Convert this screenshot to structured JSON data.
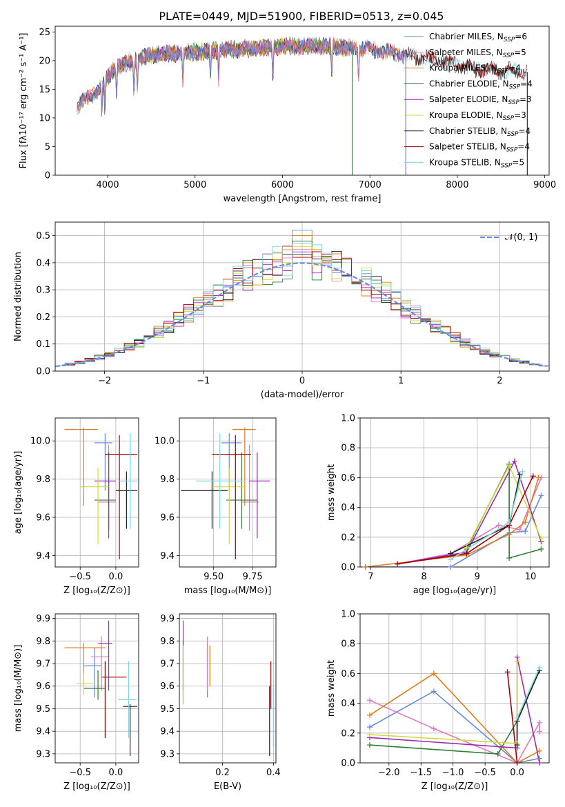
{
  "figure": {
    "title": "PLATE=0449, MJD=51900, FIBERID=0513, z=0.045"
  },
  "chart_data": [
    {
      "id": "spectrum",
      "type": "line",
      "xlabel": "wavelength [Angstrom, rest frame]",
      "ylabel": "Flux [fλ10⁻¹⁷ erg cm⁻² s⁻¹ A⁻¹]",
      "xlim": [
        3400,
        9050
      ],
      "ylim": [
        0,
        26
      ],
      "xticks": [
        4000,
        5000,
        6000,
        7000,
        8000,
        9000
      ],
      "yticks": [
        0,
        5,
        10,
        15,
        20,
        25
      ],
      "grid": false,
      "legend_position": "top-right",
      "series": [
        {
          "name": "Chabrier MILES, N_SSP=6",
          "label": "Chabrier MILES, N",
          "sub": "SSP",
          "suffix": "=6",
          "color": "#6688dd",
          "range": [
            3650,
            7410
          ]
        },
        {
          "name": "Salpeter MILES, N_SSP=5",
          "label": "Salpeter MILES, N",
          "sub": "SSP",
          "suffix": "=5",
          "color": "#e377c2",
          "range": [
            3650,
            7410
          ]
        },
        {
          "name": "Kroupa MILES, N_SSP=4",
          "label": "Kroupa MILES, N",
          "sub": "SSP",
          "suffix": "=4",
          "color": "#e07b1a",
          "range": [
            3650,
            7410
          ]
        },
        {
          "name": "Chabrier ELODIE, N_SSP=4",
          "label": "Chabrier ELODIE, N",
          "sub": "SSP",
          "suffix": "=4",
          "color": "#2e7d32",
          "range": [
            3900,
            6800
          ]
        },
        {
          "name": "Salpeter ELODIE, N_SSP=3",
          "label": "Salpeter ELODIE, N",
          "sub": "SSP",
          "suffix": "=3",
          "color": "#9c27b0",
          "range": [
            3900,
            6800
          ]
        },
        {
          "name": "Kroupa ELODIE, N_SSP=3",
          "label": "Kroupa ELODIE, N",
          "sub": "SSP",
          "suffix": "=3",
          "color": "#cddc39",
          "range": [
            3900,
            6800
          ]
        },
        {
          "name": "Chabrier STELIB, N_SSP=4",
          "label": "Chabrier STELIB, N",
          "sub": "SSP",
          "suffix": "=4",
          "color": "#222222",
          "range": [
            3650,
            8800
          ]
        },
        {
          "name": "Salpeter STELIB, N_SSP=4",
          "label": "Salpeter STELIB, N",
          "sub": "SSP",
          "suffix": "=4",
          "color": "#a00000",
          "range": [
            3650,
            8800
          ]
        },
        {
          "name": "Kroupa STELIB, N_SSP=5",
          "label": "Kroupa STELIB, N",
          "sub": "SSP",
          "suffix": "=5",
          "color": "#7fd6e0",
          "range": [
            3650,
            8800
          ]
        }
      ],
      "continuum": [
        [
          3650,
          12
        ],
        [
          3900,
          15
        ],
        [
          4100,
          19
        ],
        [
          4500,
          21
        ],
        [
          5000,
          21.5
        ],
        [
          5500,
          22
        ],
        [
          6000,
          22.5
        ],
        [
          6500,
          22.5
        ],
        [
          7000,
          22
        ],
        [
          7400,
          21
        ],
        [
          7800,
          20
        ],
        [
          8200,
          18.5
        ],
        [
          8800,
          18
        ]
      ]
    },
    {
      "id": "residuals",
      "type": "histogram",
      "xlabel": "(data-model)/error",
      "ylabel": "Normed distribution",
      "xlim": [
        -2.5,
        2.5
      ],
      "ylim": [
        0,
        0.55
      ],
      "xticks": [
        -2,
        -1,
        0,
        1,
        2
      ],
      "yticks": [
        0.0,
        0.1,
        0.2,
        0.3,
        0.4,
        0.5
      ],
      "grid": true,
      "legend_position": "top-right",
      "reference_curve": {
        "name": "𝒩(0, 1)",
        "mean": 0,
        "sigma": 1,
        "color": "#6a8ed8"
      },
      "bin_width": 0.1,
      "peak_values": [
        0.52,
        0.45,
        0.5,
        0.48,
        0.44,
        0.46,
        0.43,
        0.42,
        0.47
      ]
    },
    {
      "id": "age-vs-Z",
      "type": "scatter",
      "xlabel": "Z [log₁₀(Z/Z⊙)]",
      "ylabel": "age  [log₁₀(age/yr)]",
      "xlim": [
        -0.85,
        0.32
      ],
      "ylim": [
        9.34,
        10.12
      ],
      "xticks": [
        -0.5,
        0.0
      ],
      "yticks": [
        9.4,
        9.6,
        9.8,
        10.0
      ],
      "grid": true,
      "points": [
        {
          "x": -0.15,
          "y": 9.99,
          "xerr": [
            0.15,
            0.1
          ],
          "yerr": [
            0.25,
            0.05
          ],
          "color": "#6688dd"
        },
        {
          "x": -0.1,
          "y": 9.68,
          "xerr": [
            0.15,
            0.1
          ],
          "yerr": [
            0.15,
            0.3
          ],
          "color": "#e377c2"
        },
        {
          "x": -0.45,
          "y": 10.06,
          "xerr": [
            0.27,
            0.2
          ],
          "yerr": [
            0.4,
            0.01
          ],
          "color": "#e07b1a"
        },
        {
          "x": -0.1,
          "y": 9.69,
          "xerr": [
            0.2,
            0.1
          ],
          "yerr": [
            0.15,
            0.25
          ],
          "color": "#2e7d32"
        },
        {
          "x": -0.1,
          "y": 9.79,
          "xerr": [
            0.2,
            0.1
          ],
          "yerr": [
            0.3,
            0.15
          ],
          "color": "#9c27b0"
        },
        {
          "x": -0.25,
          "y": 9.76,
          "xerr": [
            0.25,
            0.15
          ],
          "yerr": [
            0.3,
            0.1
          ],
          "color": "#cddc39"
        },
        {
          "x": 0.15,
          "y": 9.74,
          "xerr": [
            0.15,
            0.15
          ],
          "yerr": [
            0.2,
            0.1
          ],
          "color": "#222222"
        },
        {
          "x": 0.05,
          "y": 9.93,
          "xerr": [
            0.2,
            0.25
          ],
          "yerr": [
            0.55,
            0.1
          ],
          "color": "#a00000"
        },
        {
          "x": 0.2,
          "y": 9.79,
          "xerr": [
            0.15,
            0.1
          ],
          "yerr": [
            0.25,
            0.25
          ],
          "color": "#7fd6e0"
        }
      ]
    },
    {
      "id": "age-vs-mass",
      "type": "scatter",
      "xlabel": "mass [log₁₀(M/M⊙)]",
      "ylabel": "",
      "xlim": [
        9.28,
        9.9
      ],
      "ylim": [
        9.34,
        10.12
      ],
      "xticks": [
        9.5,
        9.75
      ],
      "yticks": [
        9.4,
        9.6,
        9.8,
        10.0
      ],
      "grid": true,
      "points": [
        {
          "x": 9.6,
          "y": 9.99,
          "xerr": [
            0.05,
            0.08
          ],
          "yerr": [
            0.25,
            0.05
          ],
          "color": "#6688dd"
        },
        {
          "x": 9.73,
          "y": 9.68,
          "xerr": [
            0.05,
            0.06
          ],
          "yerr": [
            0.15,
            0.3
          ],
          "color": "#e377c2"
        },
        {
          "x": 9.7,
          "y": 10.06,
          "xerr": [
            0.08,
            0.07
          ],
          "yerr": [
            0.4,
            0.01
          ],
          "color": "#e07b1a"
        },
        {
          "x": 9.68,
          "y": 9.69,
          "xerr": [
            0.1,
            0.1
          ],
          "yerr": [
            0.15,
            0.25
          ],
          "color": "#2e7d32"
        },
        {
          "x": 9.78,
          "y": 9.79,
          "xerr": [
            0.05,
            0.08
          ],
          "yerr": [
            0.3,
            0.15
          ],
          "color": "#9c27b0"
        },
        {
          "x": 9.6,
          "y": 9.76,
          "xerr": [
            0.1,
            0.1
          ],
          "yerr": [
            0.3,
            0.1
          ],
          "color": "#cddc39"
        },
        {
          "x": 9.49,
          "y": 9.74,
          "xerr": [
            0.2,
            0.1
          ],
          "yerr": [
            0.2,
            0.1
          ],
          "color": "#222222"
        },
        {
          "x": 9.64,
          "y": 9.93,
          "xerr": [
            0.15,
            0.1
          ],
          "yerr": [
            0.55,
            0.1
          ],
          "color": "#a00000"
        },
        {
          "x": 9.54,
          "y": 9.79,
          "xerr": [
            0.15,
            0.15
          ],
          "yerr": [
            0.25,
            0.25
          ],
          "color": "#7fd6e0"
        }
      ]
    },
    {
      "id": "weight-vs-age",
      "type": "line",
      "xlabel": "age  [log₁₀(age/yr)]",
      "ylabel": "mass weight",
      "xlim": [
        6.8,
        10.35
      ],
      "ylim": [
        0,
        1.0
      ],
      "xticks": [
        7,
        8,
        9,
        10
      ],
      "yticks": [
        0.0,
        0.2,
        0.4,
        0.6,
        0.8,
        1.0
      ],
      "grid": true,
      "series": [
        {
          "color": "#6688dd",
          "x": [
            6.9,
            8.5,
            9.6,
            9.9,
            10.2
          ],
          "y": [
            0.0,
            0.0,
            0.23,
            0.24,
            0.48
          ]
        },
        {
          "color": "#e377c2",
          "x": [
            7.5,
            8.5,
            9.4,
            9.8,
            10.2
          ],
          "y": [
            0.02,
            0.09,
            0.28,
            0.25,
            0.6
          ]
        },
        {
          "color": "#e07b1a",
          "x": [
            6.9,
            8.8,
            9.6,
            9.9,
            10.15
          ],
          "y": [
            0.0,
            0.08,
            0.22,
            0.3,
            0.6
          ]
        },
        {
          "color": "#2e7d32",
          "x": [
            8.8,
            9.6,
            9.6,
            10.2
          ],
          "y": [
            0.12,
            0.69,
            0.06,
            0.12
          ]
        },
        {
          "color": "#9c27b0",
          "x": [
            7.5,
            8.8,
            9.7,
            10.2
          ],
          "y": [
            0.02,
            0.1,
            0.71,
            0.17
          ]
        },
        {
          "color": "#cddc39",
          "x": [
            8.8,
            9.6,
            10.2
          ],
          "y": [
            0.13,
            0.68,
            0.19
          ]
        },
        {
          "color": "#222222",
          "x": [
            8.5,
            9.6,
            9.8
          ],
          "y": [
            0.09,
            0.28,
            0.62
          ]
        },
        {
          "color": "#a00000",
          "x": [
            7.5,
            8.8,
            9.6,
            10.05
          ],
          "y": [
            0.02,
            0.09,
            0.28,
            0.61
          ]
        },
        {
          "color": "#7fd6e0",
          "x": [
            8.5,
            9.6,
            9.85
          ],
          "y": [
            0.05,
            0.3,
            0.64
          ]
        }
      ]
    },
    {
      "id": "mass-vs-Z",
      "type": "scatter",
      "xlabel": "Z [log₁₀(Z/Z⊙)]",
      "ylabel": "mass [log₁₀(M/M⊙)]",
      "xlim": [
        -0.85,
        0.32
      ],
      "ylim": [
        9.26,
        9.92
      ],
      "xticks": [
        -0.5,
        0.0
      ],
      "yticks": [
        9.3,
        9.4,
        9.5,
        9.6,
        9.7,
        9.8,
        9.9
      ],
      "grid": true,
      "points": [
        {
          "x": -0.3,
          "y": 9.69,
          "xerr": [
            0.15,
            0.1
          ],
          "yerr": [
            0.14,
            0.08
          ],
          "color": "#6688dd"
        },
        {
          "x": -0.2,
          "y": 9.73,
          "xerr": [
            0.15,
            0.1
          ],
          "yerr": [
            0.15,
            0.09
          ],
          "color": "#e377c2"
        },
        {
          "x": -0.45,
          "y": 9.77,
          "xerr": [
            0.27,
            0.3
          ],
          "yerr": [
            0.17,
            0.02
          ],
          "color": "#e07b1a"
        },
        {
          "x": -0.25,
          "y": 9.59,
          "xerr": [
            0.2,
            0.1
          ],
          "yerr": [
            0.05,
            0.08
          ],
          "color": "#2e7d32"
        },
        {
          "x": -0.1,
          "y": 9.79,
          "xerr": [
            0.15,
            0.05
          ],
          "yerr": [
            0.21,
            0.1
          ],
          "color": "#9c27b0"
        },
        {
          "x": -0.45,
          "y": 9.61,
          "xerr": [
            0.1,
            0.15
          ],
          "yerr": [
            0.05,
            0.05
          ],
          "color": "#cddc39"
        },
        {
          "x": 0.2,
          "y": 9.51,
          "xerr": [
            0.1,
            0.1
          ],
          "yerr": [
            0.22,
            0.01
          ],
          "color": "#222222"
        },
        {
          "x": -0.15,
          "y": 9.64,
          "xerr": [
            0.05,
            0.3
          ],
          "yerr": [
            0.27,
            0.07
          ],
          "color": "#a00000"
        },
        {
          "x": 0.18,
          "y": 9.54,
          "xerr": [
            0.15,
            0.1
          ],
          "yerr": [
            0.17,
            0.17
          ],
          "color": "#7fd6e0"
        }
      ]
    },
    {
      "id": "mass-vs-ebv",
      "type": "scatter",
      "xlabel": "E(B-V)",
      "ylabel": "",
      "xlim": [
        0.03,
        0.41
      ],
      "ylim": [
        9.26,
        9.92
      ],
      "xticks": [
        0.2,
        0.4
      ],
      "yticks": [
        9.3,
        9.4,
        9.5,
        9.6,
        9.7,
        9.8,
        9.9
      ],
      "grid": true,
      "points": [
        {
          "x": 0.14,
          "y": 9.69,
          "xerr": [
            0.0,
            0.0
          ],
          "yerr": [
            0.14,
            0.08
          ],
          "color": "#6688dd"
        },
        {
          "x": 0.14,
          "y": 9.73,
          "xerr": [
            0.0,
            0.0
          ],
          "yerr": [
            0.15,
            0.09
          ],
          "color": "#e377c2"
        },
        {
          "x": 0.15,
          "y": 9.7,
          "xerr": [
            0.0,
            0.0
          ],
          "yerr": [
            0.1,
            0.08
          ],
          "color": "#e07b1a"
        },
        {
          "x": 0.045,
          "y": 9.7,
          "xerr": [
            0.0,
            0.0
          ],
          "yerr": [
            0.18,
            0.1
          ],
          "color": "#2e7d32"
        },
        {
          "x": 0.045,
          "y": 9.79,
          "xerr": [
            0.0,
            0.0
          ],
          "yerr": [
            0.21,
            0.1
          ],
          "color": "#9c27b0"
        },
        {
          "x": 0.045,
          "y": 9.68,
          "xerr": [
            0.0,
            0.0
          ],
          "yerr": [
            0.16,
            0.1
          ],
          "color": "#cddc39"
        },
        {
          "x": 0.385,
          "y": 9.45,
          "xerr": [
            0.0,
            0.0
          ],
          "yerr": [
            0.16,
            0.15
          ],
          "color": "#222222"
        },
        {
          "x": 0.39,
          "y": 9.6,
          "xerr": [
            0.0,
            0.0
          ],
          "yerr": [
            0.1,
            0.11
          ],
          "color": "#a00000"
        },
        {
          "x": 0.4,
          "y": 9.5,
          "xerr": [
            0.0,
            0.0
          ],
          "yerr": [
            0.17,
            0.1
          ],
          "color": "#7fd6e0"
        }
      ]
    },
    {
      "id": "weight-vs-Z",
      "type": "line",
      "xlabel": "Z [log₁₀(Z/Z⊙)]",
      "ylabel": "mass weight",
      "xlim": [
        -2.45,
        0.5
      ],
      "ylim": [
        0,
        1.0
      ],
      "xticks": [
        -2.0,
        -1.5,
        -1.0,
        -0.5,
        0.0
      ],
      "yticks": [
        0.0,
        0.2,
        0.4,
        0.6,
        0.8,
        1.0
      ],
      "grid": true,
      "series": [
        {
          "color": "#6688dd",
          "x": [
            -2.3,
            -1.3,
            0.0,
            0.35
          ],
          "y": [
            0.24,
            0.48,
            0.0,
            0.03
          ]
        },
        {
          "color": "#e377c2",
          "x": [
            -2.3,
            -1.3,
            0.0,
            0.35,
            0.35
          ],
          "y": [
            0.42,
            0.23,
            0.0,
            0.27,
            0.21
          ]
        },
        {
          "color": "#e07b1a",
          "x": [
            -2.3,
            -1.3,
            0.0,
            0.35
          ],
          "y": [
            0.32,
            0.6,
            0.0,
            0.08
          ]
        },
        {
          "color": "#2e7d32",
          "x": [
            -2.3,
            -0.3,
            0.0,
            0.35
          ],
          "y": [
            0.12,
            0.06,
            0.28,
            0.62
          ]
        },
        {
          "color": "#9c27b0",
          "x": [
            -2.3,
            0.0,
            0.0,
            0.35
          ],
          "y": [
            0.17,
            0.1,
            0.71,
            0.0
          ]
        },
        {
          "color": "#cddc39",
          "x": [
            -2.3,
            0.0,
            0.0
          ],
          "y": [
            0.19,
            0.13,
            0.68
          ]
        },
        {
          "color": "#222222",
          "x": [
            0.0,
            0.0,
            0.35
          ],
          "y": [
            0.12,
            0.28,
            0.62
          ]
        },
        {
          "color": "#a00000",
          "x": [
            -0.15,
            0.0
          ],
          "y": [
            0.61,
            0.0
          ]
        },
        {
          "color": "#7fd6e0",
          "x": [
            0.0,
            0.35
          ],
          "y": [
            0.3,
            0.64
          ]
        }
      ]
    }
  ]
}
